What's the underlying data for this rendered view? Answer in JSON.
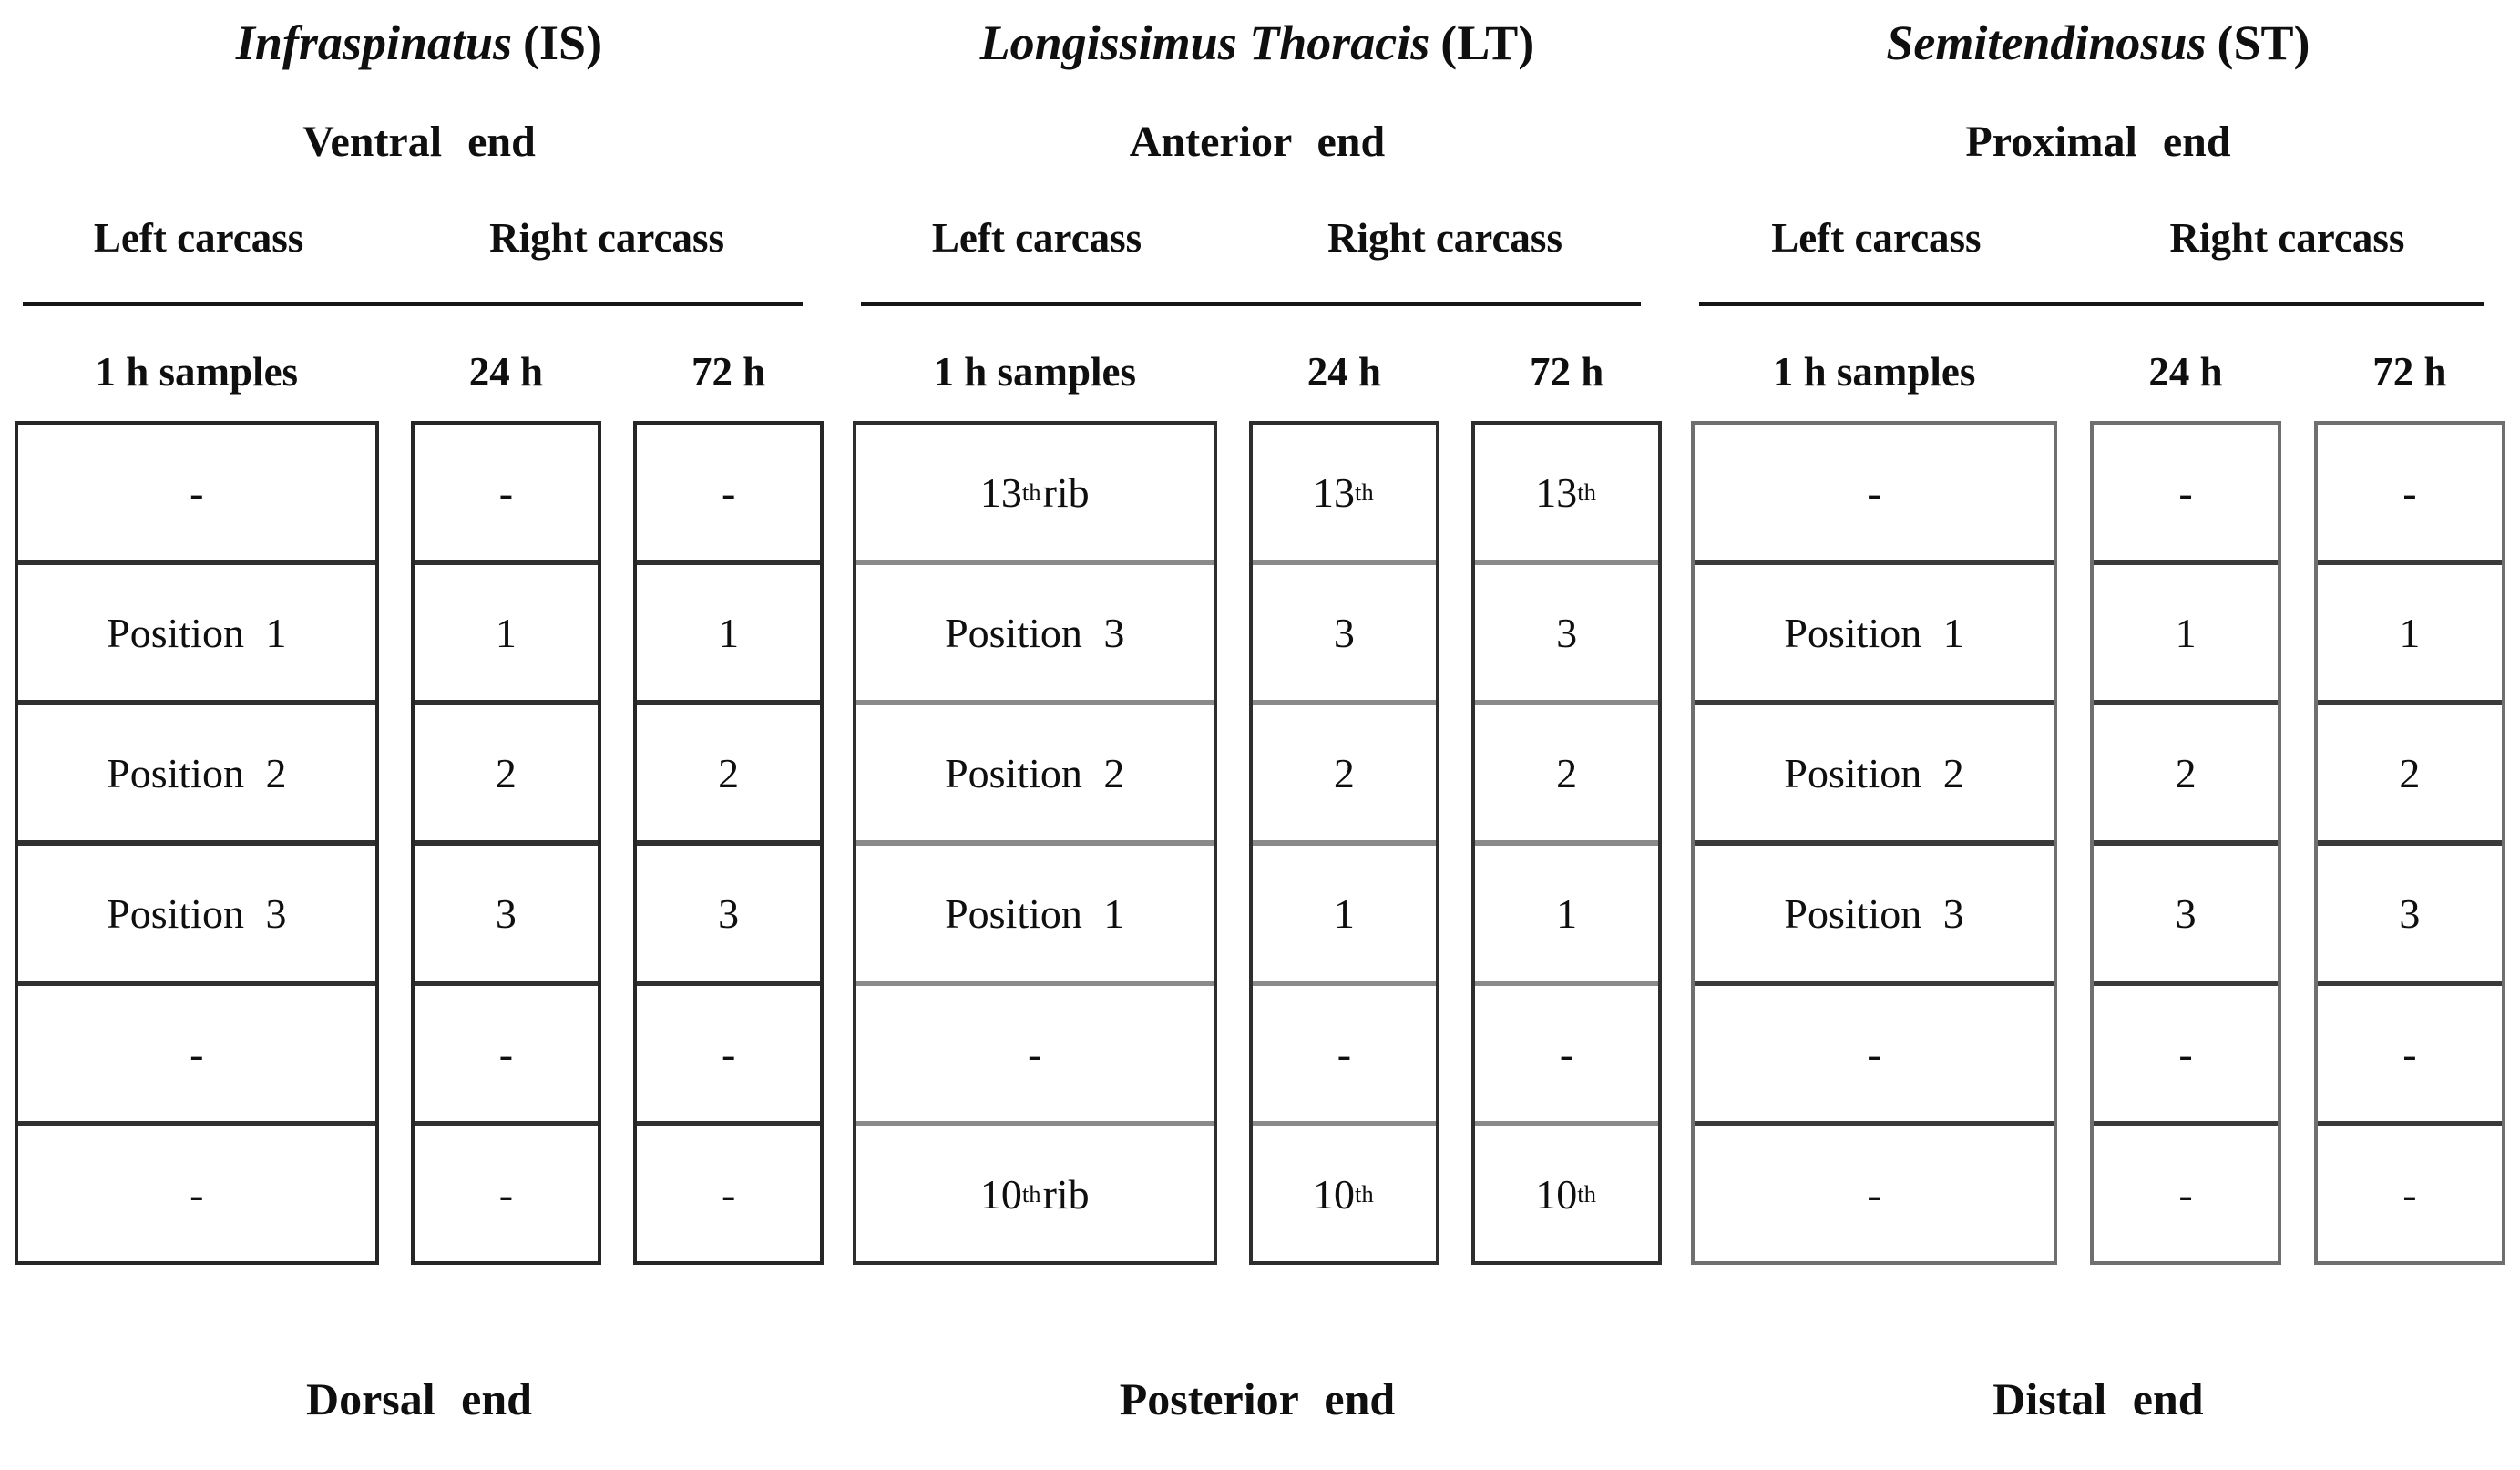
{
  "figure": {
    "type": "muscle-sampling-position-diagram",
    "background": "#ffffff",
    "text_color": "#0f0f0f"
  },
  "groups": [
    {
      "id": "IS",
      "title_name": "Infraspinatus",
      "title_abbr": "(IS)",
      "top_end_label": "Ventral end",
      "left_carcass_label": "Left carcass",
      "right_carcass_label": "Right carcass",
      "columns": [
        {
          "header": "1 h samples",
          "cells": [
            "-",
            "Position 1",
            "Position 2",
            "Position 3",
            "-",
            "-"
          ]
        },
        {
          "header": "24 h",
          "cells": [
            "-",
            "1",
            "2",
            "3",
            "-",
            "-"
          ]
        },
        {
          "header": "72 h",
          "cells": [
            "-",
            "1",
            "2",
            "3",
            "-",
            "-"
          ]
        }
      ],
      "bottom_end_label": "Dorsal end"
    },
    {
      "id": "LT",
      "title_name": "Longissimus Thoracis",
      "title_abbr": "(LT)",
      "top_end_label": "Anterior end",
      "left_carcass_label": "Left carcass",
      "right_carcass_label": "Right carcass",
      "columns": [
        {
          "header": "1 h samples",
          "cells": [
            "13{th} rib",
            "Position 3",
            "Position 2",
            "Position 1",
            "-",
            "10{th} rib"
          ]
        },
        {
          "header": "24 h",
          "cells": [
            "13{th}",
            "3",
            "2",
            "1",
            "-",
            "10{th}"
          ]
        },
        {
          "header": "72 h",
          "cells": [
            "13{th}",
            "3",
            "2",
            "1",
            "-",
            "10{th}"
          ]
        }
      ],
      "bottom_end_label": "Posterior end"
    },
    {
      "id": "ST",
      "title_name": "Semitendinosus",
      "title_abbr": "(ST)",
      "top_end_label": "Proximal end",
      "left_carcass_label": "Left carcass",
      "right_carcass_label": "Right carcass",
      "columns": [
        {
          "header": "1 h samples",
          "cells": [
            "-",
            "Position 1",
            "Position 2",
            "Position 3",
            "-",
            "-"
          ]
        },
        {
          "header": "24 h",
          "cells": [
            "-",
            "1",
            "2",
            "3",
            "-",
            "-"
          ]
        },
        {
          "header": "72 h",
          "cells": [
            "-",
            "1",
            "2",
            "3",
            "-",
            "-"
          ]
        }
      ],
      "bottom_end_label": "Distal end"
    }
  ]
}
